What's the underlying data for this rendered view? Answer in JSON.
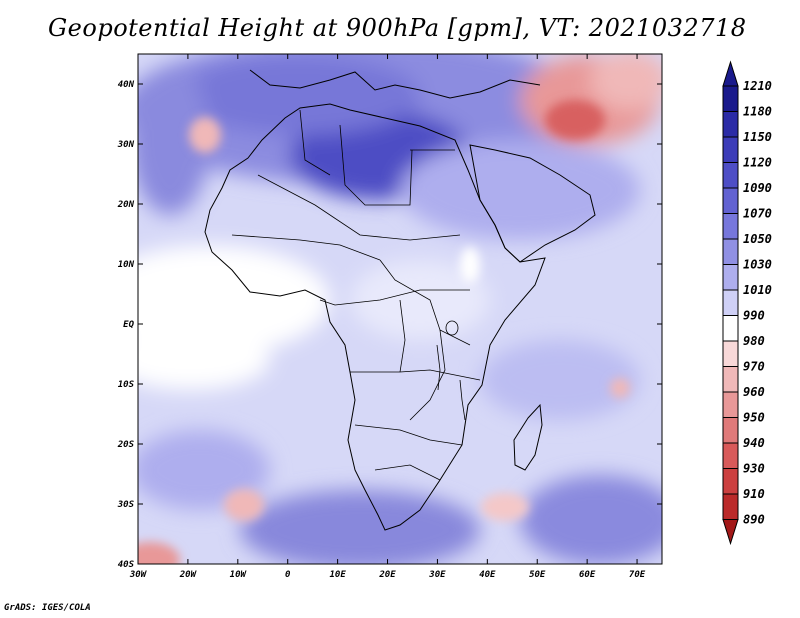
{
  "title": "Geopotential Height at 900hPa [gpm], VT: 2021032718",
  "credit": "GrADS: IGES/COLA",
  "map": {
    "region": "Africa",
    "variable": "Geopotential Height",
    "level": "900hPa",
    "units": "gpm",
    "valid_time": "2021032718",
    "lat_labels": [
      "40N",
      "30N",
      "20N",
      "10N",
      "EQ",
      "10S",
      "20S",
      "30S",
      "40S"
    ],
    "lat_values": [
      40,
      30,
      20,
      10,
      0,
      -10,
      -20,
      -30,
      -40
    ],
    "lon_labels": [
      "30W",
      "20W",
      "10W",
      "0",
      "10E",
      "20E",
      "30E",
      "40E",
      "50E",
      "60E",
      "70E"
    ],
    "lon_values": [
      -30,
      -20,
      -10,
      0,
      10,
      20,
      30,
      40,
      50,
      60,
      70
    ],
    "lon_range": [
      -30,
      75
    ],
    "lat_range": [
      -40,
      45
    ]
  },
  "colorbar": {
    "labels": [
      "1210",
      "1180",
      "1150",
      "1120",
      "1090",
      "1070",
      "1050",
      "1030",
      "1010",
      "990",
      "980",
      "970",
      "960",
      "950",
      "940",
      "930",
      "910",
      "890"
    ],
    "colors": [
      "#1a1a8c",
      "#2b2ba6",
      "#3c3cb8",
      "#4e4ec6",
      "#6262d2",
      "#7777dc",
      "#9090e4",
      "#aeaeee",
      "#cfd0f6",
      "#ffffff",
      "#f8d8d8",
      "#f0b8b8",
      "#e89898",
      "#e07a7a",
      "#d85a5a",
      "#cc4040",
      "#bb2a2a",
      "#a31818"
    ],
    "top_arrow_color": "#1a1a8c",
    "bottom_arrow_color": "#a31818"
  }
}
